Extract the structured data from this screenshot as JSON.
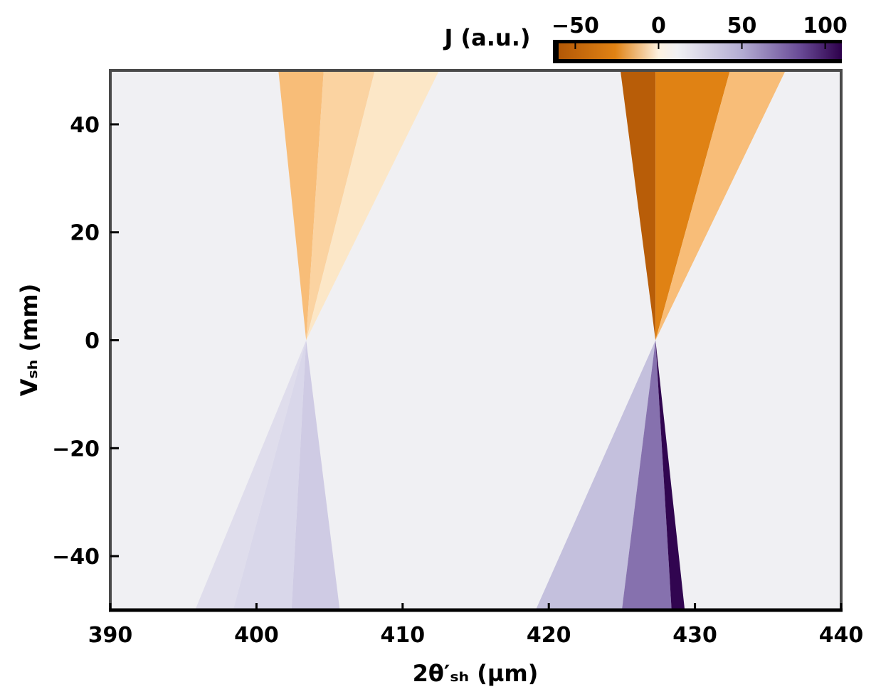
{
  "chart_data": {
    "type": "heatmap",
    "xlabel": "2θ′ₛₕ (µm)",
    "ylabel": "Vₛₕ (mm)",
    "colorbar_label": "J (a.u.)",
    "x_ticks": [
      "390",
      "400",
      "410",
      "420",
      "430",
      "440"
    ],
    "y_ticks": [
      "40",
      "20",
      "0",
      "−20",
      "−40"
    ],
    "colorbar_ticks": [
      "−50",
      "0",
      "50",
      "100"
    ],
    "xlim": [
      390,
      440
    ],
    "ylim": [
      -50,
      50
    ],
    "colorbar_range": [
      -60,
      110
    ],
    "colormap": {
      "negative": "#b35806",
      "zero": "#f7f7f7",
      "positive": "#2d004b"
    },
    "grid": false,
    "wedges": [
      {
        "direction": "up",
        "apex": [
          403.4,
          0
        ],
        "sign": -1,
        "bands": [
          {
            "x_top": [
              401.5,
              404.6
            ],
            "value": -22
          },
          {
            "x_top": [
              404.6,
              408.1
            ],
            "value": -16
          },
          {
            "x_top": [
              408.1,
              412.5
            ],
            "value": -10
          }
        ]
      },
      {
        "direction": "down",
        "apex": [
          403.4,
          0
        ],
        "sign": 1,
        "bands": [
          {
            "x_bottom": [
              395.8,
              398.4
            ],
            "value": 12
          },
          {
            "x_bottom": [
              398.4,
              402.4
            ],
            "value": 16
          },
          {
            "x_bottom": [
              402.4,
              405.7
            ],
            "value": 22
          }
        ]
      },
      {
        "direction": "up",
        "apex": [
          427.3,
          0
        ],
        "sign": -1,
        "bands": [
          {
            "x_top": [
              424.9,
              427.3
            ],
            "value": -58
          },
          {
            "x_top": [
              427.3,
              432.4
            ],
            "value": -42
          },
          {
            "x_top": [
              432.4,
              436.2
            ],
            "value": -22
          }
        ]
      },
      {
        "direction": "down",
        "apex": [
          427.3,
          0
        ],
        "sign": 1,
        "bands": [
          {
            "x_bottom": [
              419.1,
              425.0
            ],
            "value": 28
          },
          {
            "x_bottom": [
              425.0,
              428.4
            ],
            "value": 62
          },
          {
            "x_bottom": [
              428.4,
              429.3
            ],
            "value": 108
          }
        ]
      }
    ]
  }
}
